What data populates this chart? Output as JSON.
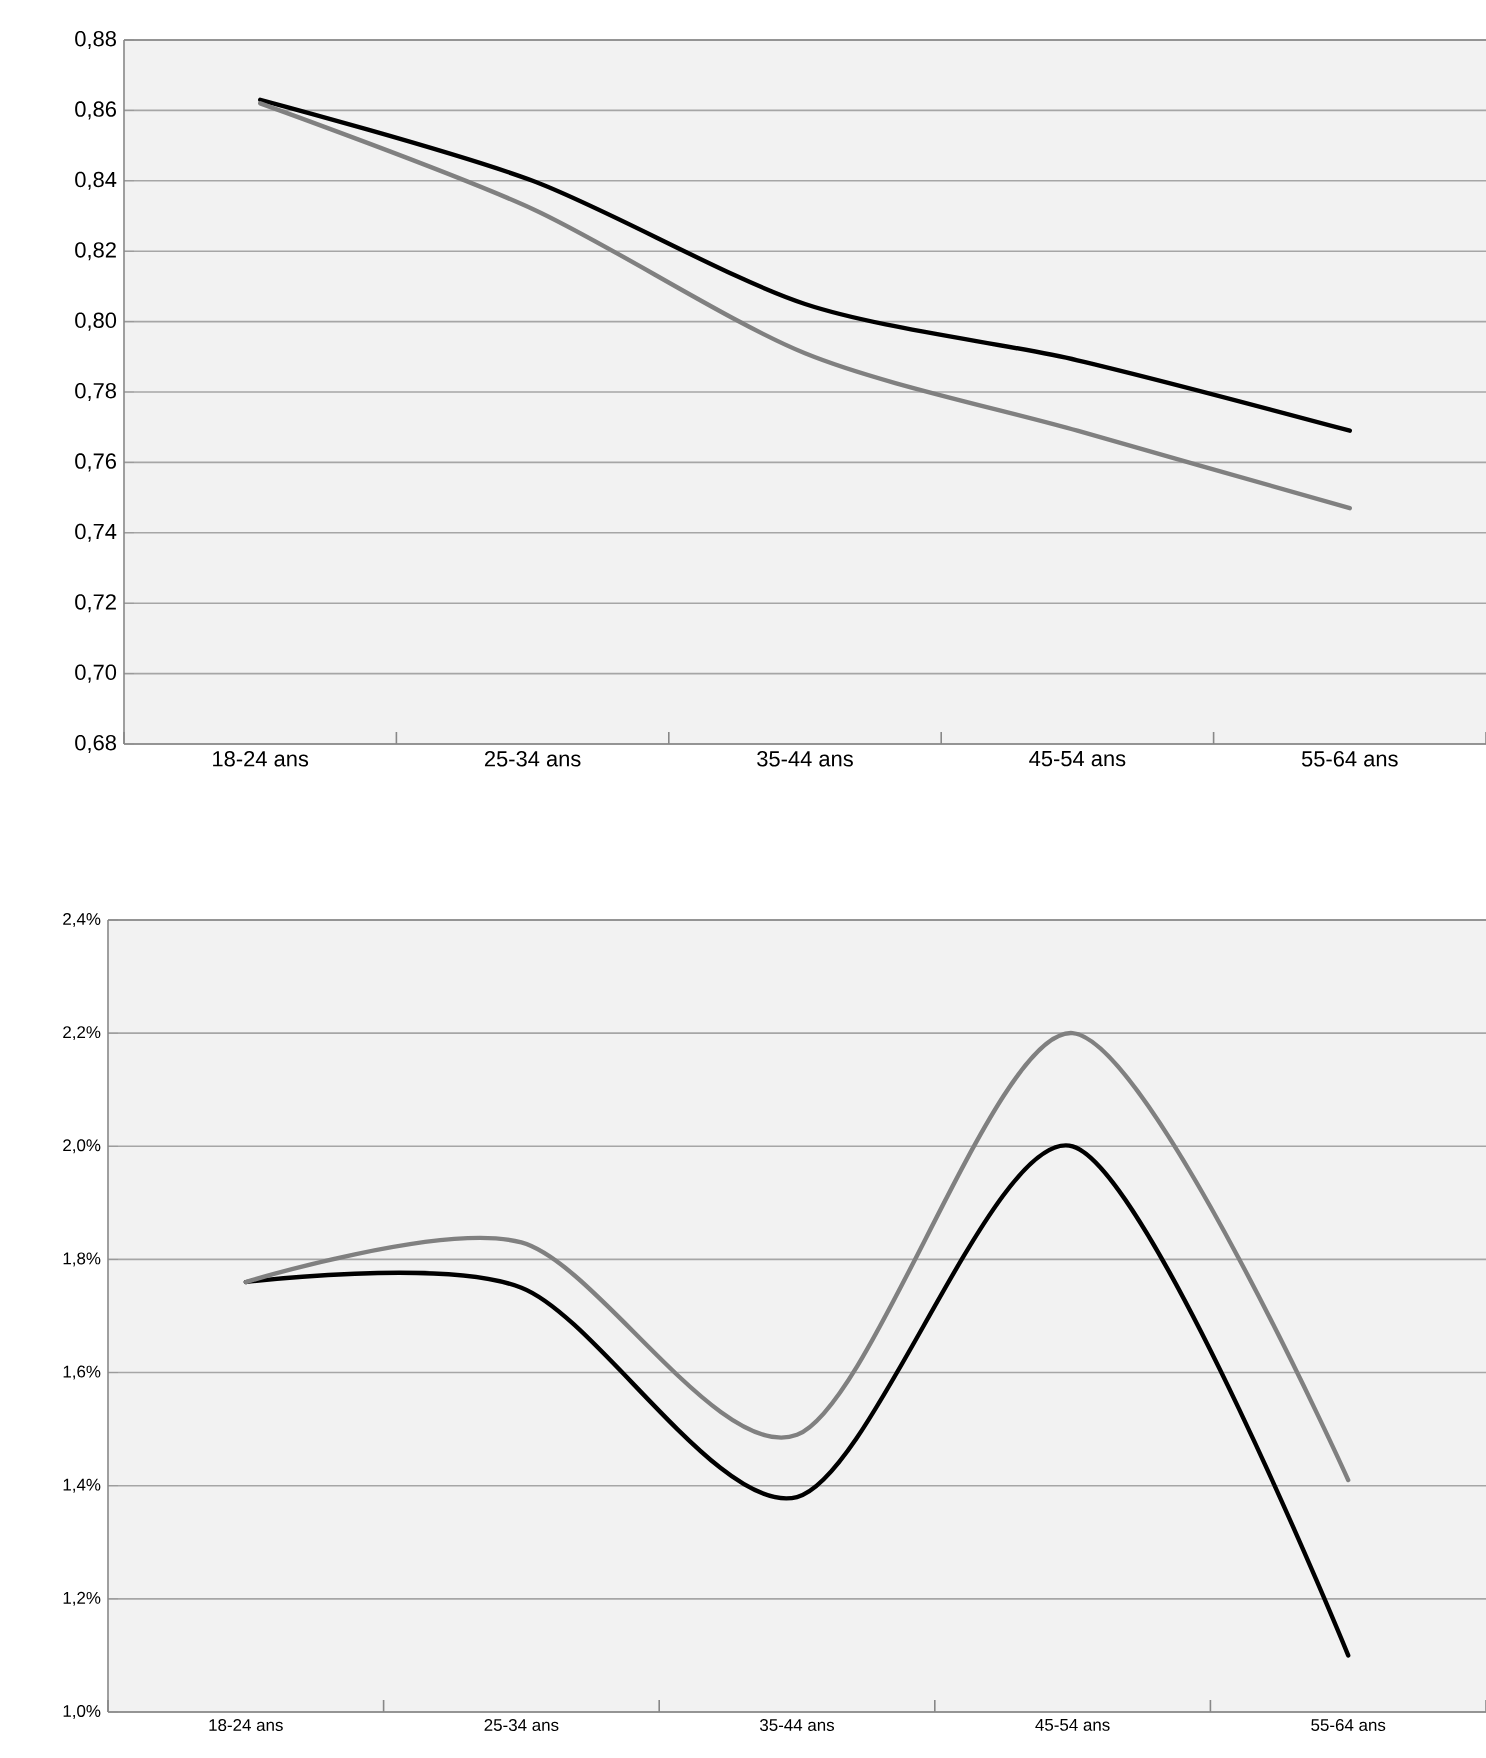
{
  "chart_data": [
    {
      "type": "line",
      "categories": [
        "18-24 ans",
        "25-34 ans",
        "35-44 ans",
        "45-54 ans",
        "55-64 ans"
      ],
      "series": [
        {
          "color": "#000000",
          "values": [
            0.863,
            0.84,
            0.805,
            0.789,
            0.769
          ]
        },
        {
          "color": "#808080",
          "values": [
            0.862,
            0.832,
            0.791,
            0.769,
            0.747
          ]
        }
      ],
      "ylim": [
        0.68,
        0.88
      ],
      "yticks": [
        {
          "value": 0.68,
          "label": "0,68"
        },
        {
          "value": 0.7,
          "label": "0,70"
        },
        {
          "value": 0.72,
          "label": "0,72"
        },
        {
          "value": 0.74,
          "label": "0,74"
        },
        {
          "value": 0.76,
          "label": "0,76"
        },
        {
          "value": 0.78,
          "label": "0,78"
        },
        {
          "value": 0.8,
          "label": "0,80"
        },
        {
          "value": 0.82,
          "label": "0,82"
        },
        {
          "value": 0.84,
          "label": "0,84"
        },
        {
          "value": 0.86,
          "label": "0,86"
        },
        {
          "value": 0.88,
          "label": "0,88"
        }
      ],
      "grid": "y",
      "marker": "none",
      "line_style": "solid"
    },
    {
      "type": "line",
      "categories": [
        "18-24 ans",
        "25-34 ans",
        "35-44 ans",
        "45-54 ans",
        "55-64 ans"
      ],
      "series": [
        {
          "color": "#000000",
          "values": [
            1.76,
            1.75,
            1.38,
            2.0,
            1.1
          ]
        },
        {
          "color": "#808080",
          "values": [
            1.76,
            1.83,
            1.49,
            2.2,
            1.41
          ]
        }
      ],
      "ylim": [
        1.0,
        2.4
      ],
      "yticks": [
        {
          "value": 1.0,
          "label": "1,0%"
        },
        {
          "value": 1.2,
          "label": "1,2%"
        },
        {
          "value": 1.4,
          "label": "1,4%"
        },
        {
          "value": 1.6,
          "label": "1,6%"
        },
        {
          "value": 1.8,
          "label": "1,8%"
        },
        {
          "value": 2.0,
          "label": "2,0%"
        },
        {
          "value": 2.2,
          "label": "2,2%"
        },
        {
          "value": 2.4,
          "label": "2,4%"
        }
      ],
      "grid": "y",
      "marker": "none",
      "line_style": "solid"
    }
  ]
}
